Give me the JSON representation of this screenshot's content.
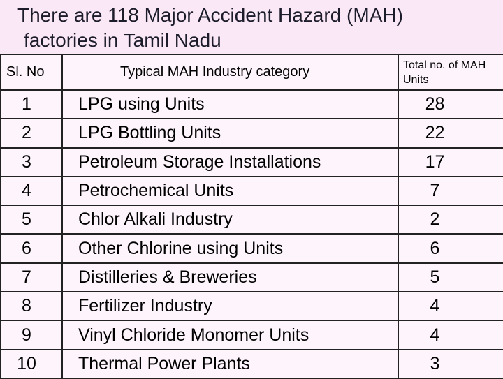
{
  "title": {
    "line1": "There are 118  Major Accident Hazard  (MAH)",
    "line2": "factories in Tamil Nadu"
  },
  "table": {
    "headers": [
      "Sl. No",
      "Typical MAH Industry category",
      "Total no. of MAH Units"
    ],
    "rows": [
      [
        "1",
        "LPG using Units",
        "28"
      ],
      [
        "2",
        "LPG Bottling Units",
        "22"
      ],
      [
        "3",
        "Petroleum Storage Installations",
        "17"
      ],
      [
        "4",
        "Petrochemical Units",
        "7"
      ],
      [
        "5",
        "Chlor Alkali Industry",
        "2"
      ],
      [
        "6",
        "Other Chlorine using Units",
        "6"
      ],
      [
        "7",
        "Distilleries & Breweries",
        "5"
      ],
      [
        "8",
        "Fertilizer Industry",
        "4"
      ],
      [
        "9",
        "Vinyl Chloride Monomer Units",
        "4"
      ],
      [
        "10",
        "Thermal Power Plants",
        "3"
      ]
    ]
  }
}
